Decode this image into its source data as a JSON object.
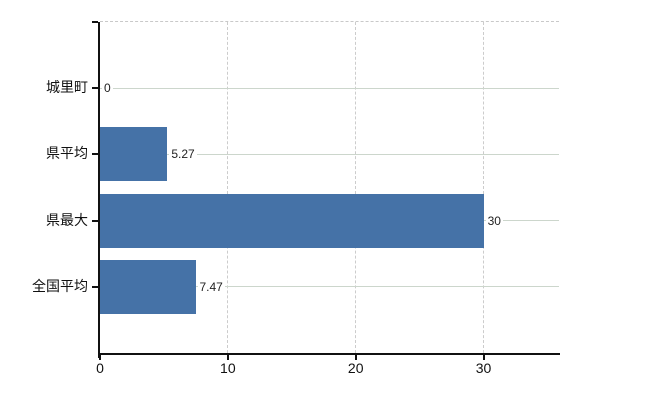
{
  "chart_data": {
    "type": "bar",
    "orientation": "horizontal",
    "categories": [
      "城里町",
      "県平均",
      "県最大",
      "全国平均"
    ],
    "values": [
      0,
      5.27,
      30,
      7.47
    ],
    "value_labels": [
      "0",
      "5.27",
      "30",
      "7.47"
    ],
    "x_ticks": [
      0,
      10,
      20,
      30
    ],
    "x_tick_labels": [
      "0",
      "10",
      "20",
      "30"
    ],
    "xlim": [
      0,
      35.9
    ],
    "grid": true,
    "legend": false,
    "colors": {
      "bar": "#4572a7",
      "h_gridline": "#ccd6cc",
      "v_gridline": "#cccccc",
      "axis": "#111111",
      "label": "#111111",
      "value_label": "#222222",
      "background": "#ffffff"
    }
  }
}
